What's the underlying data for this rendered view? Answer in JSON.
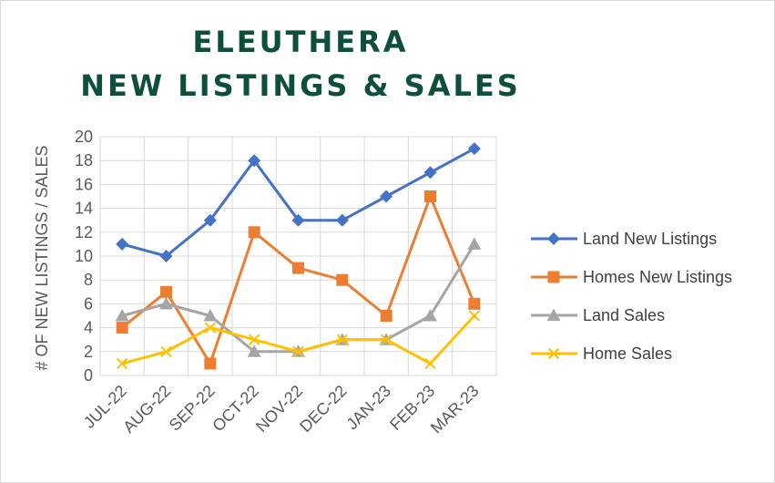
{
  "chart_data": {
    "type": "line",
    "title_line1": "ELEUTHERA",
    "title_line2": "NEW LISTINGS & SALES",
    "ylabel": "# OF NEW LISTINGS / SALES",
    "xlabel": "",
    "ylim": [
      0,
      20
    ],
    "yticks": [
      0,
      2,
      4,
      6,
      8,
      10,
      12,
      14,
      16,
      18,
      20
    ],
    "grid": true,
    "legend_position": "right",
    "categories": [
      "JUL-22",
      "AUG-22",
      "SEP-22",
      "OCT-22",
      "NOV-22",
      "DEC-22",
      "JAN-23",
      "FEB-23",
      "MAR-23"
    ],
    "series": [
      {
        "name": "Land New Listings",
        "color": "#4472c4",
        "marker": "diamond",
        "values": [
          11,
          10,
          13,
          18,
          13,
          13,
          15,
          17,
          19
        ]
      },
      {
        "name": "Homes New Listings",
        "color": "#ed7d31",
        "marker": "square",
        "values": [
          4,
          7,
          1,
          12,
          9,
          8,
          5,
          15,
          6
        ]
      },
      {
        "name": "Land Sales",
        "color": "#a5a5a5",
        "marker": "triangle",
        "values": [
          5,
          6,
          5,
          2,
          2,
          3,
          3,
          5,
          11
        ]
      },
      {
        "name": "Home Sales",
        "color": "#ffc000",
        "marker": "x",
        "values": [
          1,
          2,
          4,
          3,
          2,
          3,
          3,
          1,
          5
        ]
      }
    ]
  }
}
